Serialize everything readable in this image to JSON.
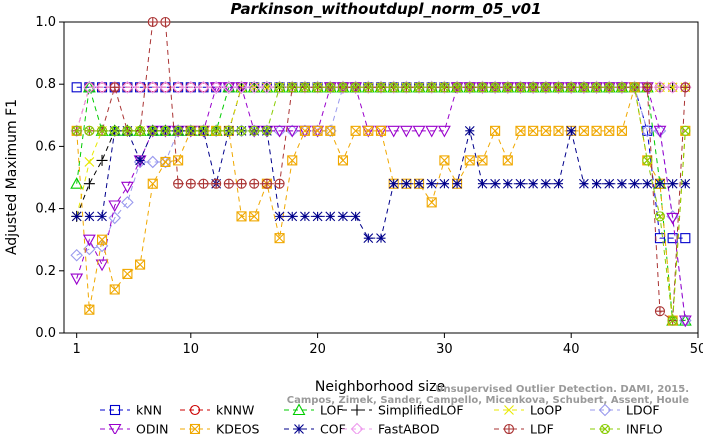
{
  "chart_data": {
    "type": "line",
    "title": "Parkinson_withoutdupl_norm_05_v01",
    "xlabel": "Neighborhood size",
    "ylabel": "Adjusted Maximum F1",
    "xlim": [
      0,
      50
    ],
    "ylim": [
      0,
      1
    ],
    "xticks": [
      1,
      10,
      20,
      30,
      40,
      50
    ],
    "yticks": [
      0.0,
      0.2,
      0.4,
      0.6,
      0.8,
      1.0
    ],
    "xtick_labels": [
      "1",
      "10",
      "20",
      "30",
      "40",
      "50"
    ],
    "ytick_labels": [
      "0.0",
      "0.2",
      "0.4",
      "0.6",
      "0.8",
      "1.0"
    ],
    "grid": false,
    "legend_position": "bottom",
    "x": [
      1,
      2,
      3,
      4,
      5,
      6,
      7,
      8,
      9,
      10,
      11,
      12,
      13,
      14,
      15,
      16,
      17,
      18,
      19,
      20,
      21,
      22,
      23,
      24,
      25,
      26,
      27,
      28,
      29,
      30,
      31,
      32,
      33,
      34,
      35,
      36,
      37,
      38,
      39,
      40,
      41,
      42,
      43,
      44,
      45,
      46,
      47,
      48,
      49
    ],
    "series": [
      {
        "name": "kNN",
        "color": "#0000cc",
        "marker": "square",
        "values": [
          0.79,
          0.79,
          0.79,
          0.79,
          0.79,
          0.79,
          0.79,
          0.79,
          0.79,
          0.79,
          0.79,
          0.79,
          0.79,
          0.79,
          0.79,
          0.79,
          0.79,
          0.79,
          0.79,
          0.79,
          0.79,
          0.79,
          0.79,
          0.79,
          0.79,
          0.79,
          0.79,
          0.79,
          0.79,
          0.79,
          0.79,
          0.79,
          0.79,
          0.79,
          0.79,
          0.79,
          0.79,
          0.79,
          0.79,
          0.79,
          0.79,
          0.79,
          0.79,
          0.79,
          0.79,
          0.65,
          0.305,
          0.305,
          0.305
        ]
      },
      {
        "name": "kNNW",
        "color": "#cc0000",
        "marker": "circle",
        "values": [
          0.65,
          0.79,
          0.79,
          0.79,
          0.79,
          0.79,
          0.79,
          0.79,
          0.79,
          0.79,
          0.79,
          0.79,
          0.79,
          0.79,
          0.79,
          0.79,
          0.79,
          0.79,
          0.79,
          0.79,
          0.79,
          0.79,
          0.79,
          0.79,
          0.79,
          0.79,
          0.79,
          0.79,
          0.79,
          0.79,
          0.79,
          0.79,
          0.79,
          0.79,
          0.79,
          0.79,
          0.79,
          0.79,
          0.79,
          0.79,
          0.79,
          0.79,
          0.79,
          0.79,
          0.79,
          0.79,
          0.79,
          0.79,
          0.79
        ]
      },
      {
        "name": "LOF",
        "color": "#00cc00",
        "marker": "triangle-up",
        "values": [
          0.48,
          0.79,
          0.65,
          0.65,
          0.65,
          0.65,
          0.65,
          0.65,
          0.65,
          0.65,
          0.65,
          0.65,
          0.79,
          0.79,
          0.79,
          0.79,
          0.79,
          0.79,
          0.79,
          0.79,
          0.79,
          0.79,
          0.79,
          0.79,
          0.79,
          0.79,
          0.79,
          0.79,
          0.79,
          0.79,
          0.79,
          0.79,
          0.79,
          0.79,
          0.79,
          0.79,
          0.79,
          0.79,
          0.79,
          0.79,
          0.79,
          0.79,
          0.79,
          0.79,
          0.79,
          0.79,
          0.48,
          0.04,
          0.04
        ]
      },
      {
        "name": "SimplifiedLOF",
        "color": "#000000",
        "marker": "plus",
        "values": [
          0.375,
          0.48,
          0.555,
          0.65,
          0.65,
          0.65,
          0.65,
          0.65,
          0.65,
          0.65,
          0.65,
          0.65,
          0.65,
          0.79,
          0.79,
          0.79,
          0.79,
          0.79,
          0.79,
          0.79,
          0.79,
          0.79,
          0.79,
          0.79,
          0.79,
          0.79,
          0.79,
          0.79,
          0.79,
          0.79,
          0.79,
          0.79,
          0.79,
          0.79,
          0.79,
          0.79,
          0.79,
          0.79,
          0.79,
          0.79,
          0.79,
          0.79,
          0.79,
          0.79,
          0.79,
          0.79,
          0.79,
          0.79,
          0.79
        ]
      },
      {
        "name": "LoOP",
        "color": "#e8e800",
        "marker": "cross",
        "values": [
          0.375,
          0.55,
          0.65,
          0.65,
          0.65,
          0.65,
          0.65,
          0.65,
          0.65,
          0.65,
          0.65,
          0.65,
          0.65,
          0.79,
          0.79,
          0.79,
          0.79,
          0.79,
          0.79,
          0.79,
          0.79,
          0.79,
          0.79,
          0.79,
          0.79,
          0.79,
          0.79,
          0.79,
          0.79,
          0.79,
          0.79,
          0.79,
          0.79,
          0.79,
          0.79,
          0.79,
          0.79,
          0.79,
          0.79,
          0.79,
          0.79,
          0.79,
          0.79,
          0.79,
          0.79,
          0.79,
          0.79,
          0.79,
          0.79
        ]
      },
      {
        "name": "LDOF",
        "color": "#9999ee",
        "marker": "diamond",
        "values": [
          0.25,
          0.27,
          0.28,
          0.37,
          0.42,
          0.55,
          0.55,
          0.55,
          0.65,
          0.65,
          0.65,
          0.65,
          0.65,
          0.65,
          0.65,
          0.65,
          0.65,
          0.65,
          0.65,
          0.65,
          0.65,
          0.79,
          0.79,
          0.79,
          0.79,
          0.79,
          0.79,
          0.79,
          0.79,
          0.79,
          0.79,
          0.79,
          0.79,
          0.79,
          0.79,
          0.79,
          0.79,
          0.79,
          0.79,
          0.79,
          0.79,
          0.79,
          0.79,
          0.79,
          0.79,
          0.65,
          0.65,
          0.375,
          0.04
        ]
      },
      {
        "name": "ODIN",
        "color": "#9900cc",
        "marker": "triangle-down",
        "values": [
          0.175,
          0.3,
          0.22,
          0.41,
          0.47,
          0.555,
          0.65,
          0.65,
          0.65,
          0.65,
          0.65,
          0.79,
          0.79,
          0.79,
          0.65,
          0.65,
          0.65,
          0.65,
          0.65,
          0.65,
          0.79,
          0.79,
          0.79,
          0.65,
          0.65,
          0.65,
          0.65,
          0.65,
          0.65,
          0.65,
          0.79,
          0.79,
          0.79,
          0.79,
          0.79,
          0.79,
          0.79,
          0.79,
          0.79,
          0.79,
          0.79,
          0.79,
          0.79,
          0.79,
          0.79,
          0.79,
          0.65,
          0.37,
          0.04
        ]
      },
      {
        "name": "KDEOS",
        "color": "#f0a800",
        "marker": "square-x",
        "values": [
          0.65,
          0.075,
          0.3,
          0.14,
          0.19,
          0.22,
          0.48,
          0.55,
          0.555,
          0.65,
          0.65,
          0.65,
          0.65,
          0.375,
          0.375,
          0.48,
          0.305,
          0.555,
          0.65,
          0.65,
          0.65,
          0.555,
          0.65,
          0.65,
          0.65,
          0.48,
          0.48,
          0.48,
          0.42,
          0.555,
          0.48,
          0.555,
          0.555,
          0.65,
          0.555,
          0.65,
          0.65,
          0.65,
          0.65,
          0.65,
          0.65,
          0.65,
          0.65,
          0.65,
          0.79,
          0.555,
          0.48,
          0.04,
          0.65
        ]
      },
      {
        "name": "COF",
        "color": "#00008b",
        "marker": "star",
        "values": [
          0.375,
          0.375,
          0.375,
          0.65,
          0.65,
          0.555,
          0.65,
          0.65,
          0.65,
          0.65,
          0.65,
          0.48,
          0.65,
          0.65,
          0.65,
          0.65,
          0.375,
          0.375,
          0.375,
          0.375,
          0.375,
          0.375,
          0.375,
          0.305,
          0.305,
          0.48,
          0.48,
          0.48,
          0.48,
          0.48,
          0.48,
          0.65,
          0.48,
          0.48,
          0.48,
          0.48,
          0.48,
          0.48,
          0.48,
          0.65,
          0.48,
          0.48,
          0.48,
          0.48,
          0.48,
          0.48,
          0.48,
          0.48,
          0.48
        ]
      },
      {
        "name": "FastABOD",
        "color": "#ee99ee",
        "marker": "diamond",
        "values": [
          0.65,
          0.79,
          0.79,
          0.79,
          0.79,
          0.79,
          0.79,
          0.79,
          0.79,
          0.79,
          0.79,
          0.79,
          0.79,
          0.79,
          0.79,
          0.79,
          0.79,
          0.79,
          0.79,
          0.79,
          0.79,
          0.79,
          0.79,
          0.79,
          0.79,
          0.79,
          0.79,
          0.79,
          0.79,
          0.79,
          0.79,
          0.79,
          0.79,
          0.79,
          0.79,
          0.79,
          0.79,
          0.79,
          0.79,
          0.79,
          0.79,
          0.79,
          0.79,
          0.79,
          0.79,
          0.79,
          0.79,
          0.79,
          0.79
        ]
      },
      {
        "name": "LDF",
        "color": "#aa3333",
        "marker": "circle-plus",
        "values": [
          0.65,
          0.65,
          0.65,
          0.79,
          0.65,
          0.65,
          1.0,
          1.0,
          0.48,
          0.48,
          0.48,
          0.48,
          0.48,
          0.48,
          0.48,
          0.48,
          0.48,
          0.79,
          0.79,
          0.79,
          0.79,
          0.79,
          0.79,
          0.79,
          0.79,
          0.79,
          0.79,
          0.79,
          0.79,
          0.79,
          0.79,
          0.79,
          0.79,
          0.79,
          0.79,
          0.79,
          0.79,
          0.79,
          0.79,
          0.79,
          0.79,
          0.79,
          0.79,
          0.79,
          0.79,
          0.79,
          0.07,
          0.04,
          0.79
        ]
      },
      {
        "name": "INFLO",
        "color": "#88cc00",
        "marker": "circle-x",
        "values": [
          0.65,
          0.65,
          0.65,
          0.65,
          0.65,
          0.65,
          0.65,
          0.65,
          0.65,
          0.65,
          0.65,
          0.65,
          0.65,
          0.65,
          0.65,
          0.65,
          0.79,
          0.79,
          0.79,
          0.79,
          0.79,
          0.79,
          0.79,
          0.79,
          0.79,
          0.79,
          0.79,
          0.79,
          0.79,
          0.79,
          0.79,
          0.79,
          0.79,
          0.79,
          0.79,
          0.79,
          0.79,
          0.79,
          0.79,
          0.79,
          0.79,
          0.79,
          0.79,
          0.79,
          0.79,
          0.555,
          0.375,
          0.04,
          0.65
        ]
      }
    ]
  },
  "watermark": {
    "line1": "Unsupervised Outlier Detection. DAMI, 2015.",
    "line2": "Campos, Zimek, Sander, Campello, Micenkova, Schubert, Assent, Houle"
  }
}
